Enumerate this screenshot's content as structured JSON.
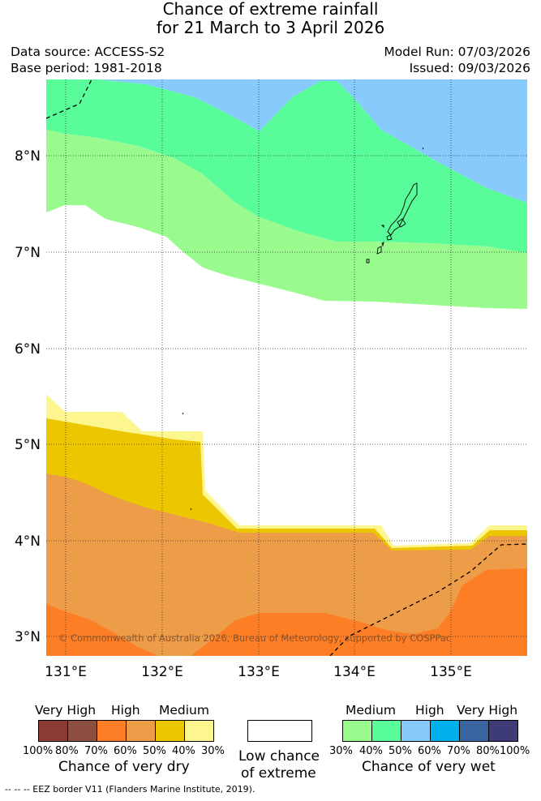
{
  "header": {
    "title_line1": "Chance of extreme rainfall",
    "title_line2": "for 21 March to 3 April 2026",
    "data_source": "Data source: ACCESS-S2",
    "base_period": "Base period: 1981-2018",
    "model_run": "Model Run: 07/03/2026",
    "issued": "Issued: 09/03/2026"
  },
  "map": {
    "lon_labels": [
      "131°E",
      "132°E",
      "133°E",
      "134°E",
      "135°E"
    ],
    "lat_labels": [
      "8°N",
      "7°N",
      "6°N",
      "5°N",
      "4°N",
      "3°N"
    ],
    "copyright": "© Commonwealth of Australia 2026, Bureau of Meteorology, supported by COSPPac"
  },
  "legend": {
    "dry": {
      "headers": [
        "Very High",
        "High",
        "Medium"
      ],
      "colors": [
        "#8b3b33",
        "#8d4f3f",
        "#fd7e24",
        "#ed9c48",
        "#ecc600",
        "#fdf58e"
      ],
      "percents": [
        "100%",
        "80%",
        "70%",
        "60%",
        "50%",
        "40%",
        "30%"
      ],
      "caption": "Chance of very dry"
    },
    "low": {
      "color": "#ffffff",
      "caption_line1": "Low chance",
      "caption_line2": "of extreme"
    },
    "wet": {
      "headers": [
        "Medium",
        "High",
        "Very High"
      ],
      "colors": [
        "#99fa8e",
        "#58fd9a",
        "#86cbfb",
        "#00b1ec",
        "#38659f",
        "#3e3c77"
      ],
      "percents": [
        "30%",
        "40%",
        "50%",
        "60%",
        "70%",
        "80%",
        "100%"
      ],
      "caption": "Chance of very wet"
    },
    "footnote": "--  --  -- EEZ border V11 (Flanders Marine Institute, 2019)."
  }
}
